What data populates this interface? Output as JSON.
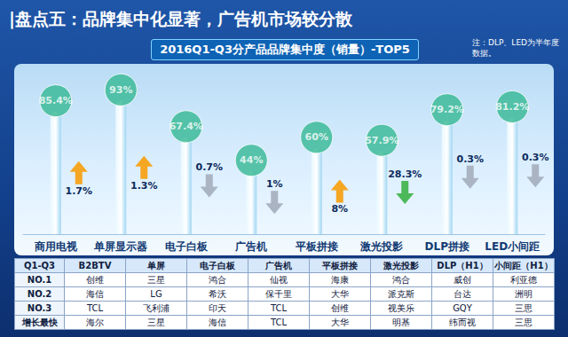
{
  "title": "|盘点五：品牌集中化显著，广告机市场较分散",
  "note": "注：DLP、LED为半年度数据。",
  "chart_data": {
    "type": "bar",
    "title": "2016Q1-Q3分产品品牌集中度（销量）-TOP5",
    "categories": [
      "商用电视",
      "单屏显示器",
      "电子白板",
      "广告机",
      "平板拼接",
      "激光投影",
      "DLP拼接",
      "LED小间距"
    ],
    "values": [
      85.4,
      93,
      67.4,
      44,
      60,
      57.9,
      79.2,
      81.2
    ],
    "value_labels": [
      "85.4%",
      "93%",
      "67.4%",
      "44%",
      "60%",
      "57.9%",
      "79.2%",
      "81.2%"
    ],
    "data_labels": true,
    "color": "#35b894",
    "ylim": [
      0,
      100
    ],
    "tick_labels": "x",
    "grid": false,
    "change_values": [
      1.7,
      1.3,
      -0.7,
      -1,
      8,
      -28.3,
      -0.3,
      -0.3
    ],
    "change_labels": [
      "1.7%",
      "1.3%",
      "0.7%",
      "1%",
      "8%",
      "28.3%",
      "0.3%",
      "0.3%"
    ],
    "change_colors": [
      "#f5a623",
      "#f5a623",
      "#aab4c2",
      "#aab4c2",
      "#f5a623",
      "#4cb85a",
      "#aab4c2",
      "#aab4c2"
    ]
  },
  "table": {
    "header": [
      "Q1-Q3",
      "B2BTV",
      "单屏",
      "电子白板",
      "广告机",
      "平板拼接",
      "激光投影",
      "DLP（H1）",
      "小间距（H1）"
    ],
    "rows": [
      [
        "NO.1",
        "创维",
        "三星",
        "鸿合",
        "仙视",
        "海康",
        "鸿合",
        "威创",
        "利亚德"
      ],
      [
        "NO.2",
        "海信",
        "LG",
        "希沃",
        "保千里",
        "大华",
        "派克斯",
        "台达",
        "洲明"
      ],
      [
        "NO.3",
        "TCL",
        "飞利浦",
        "印天",
        "TCL",
        "创维",
        "视美乐",
        "GQY",
        "三思"
      ],
      [
        "增长最快",
        "海尔",
        "三星",
        "海信",
        "TCL",
        "大华",
        "明基",
        "纬而视",
        "三思"
      ]
    ]
  }
}
